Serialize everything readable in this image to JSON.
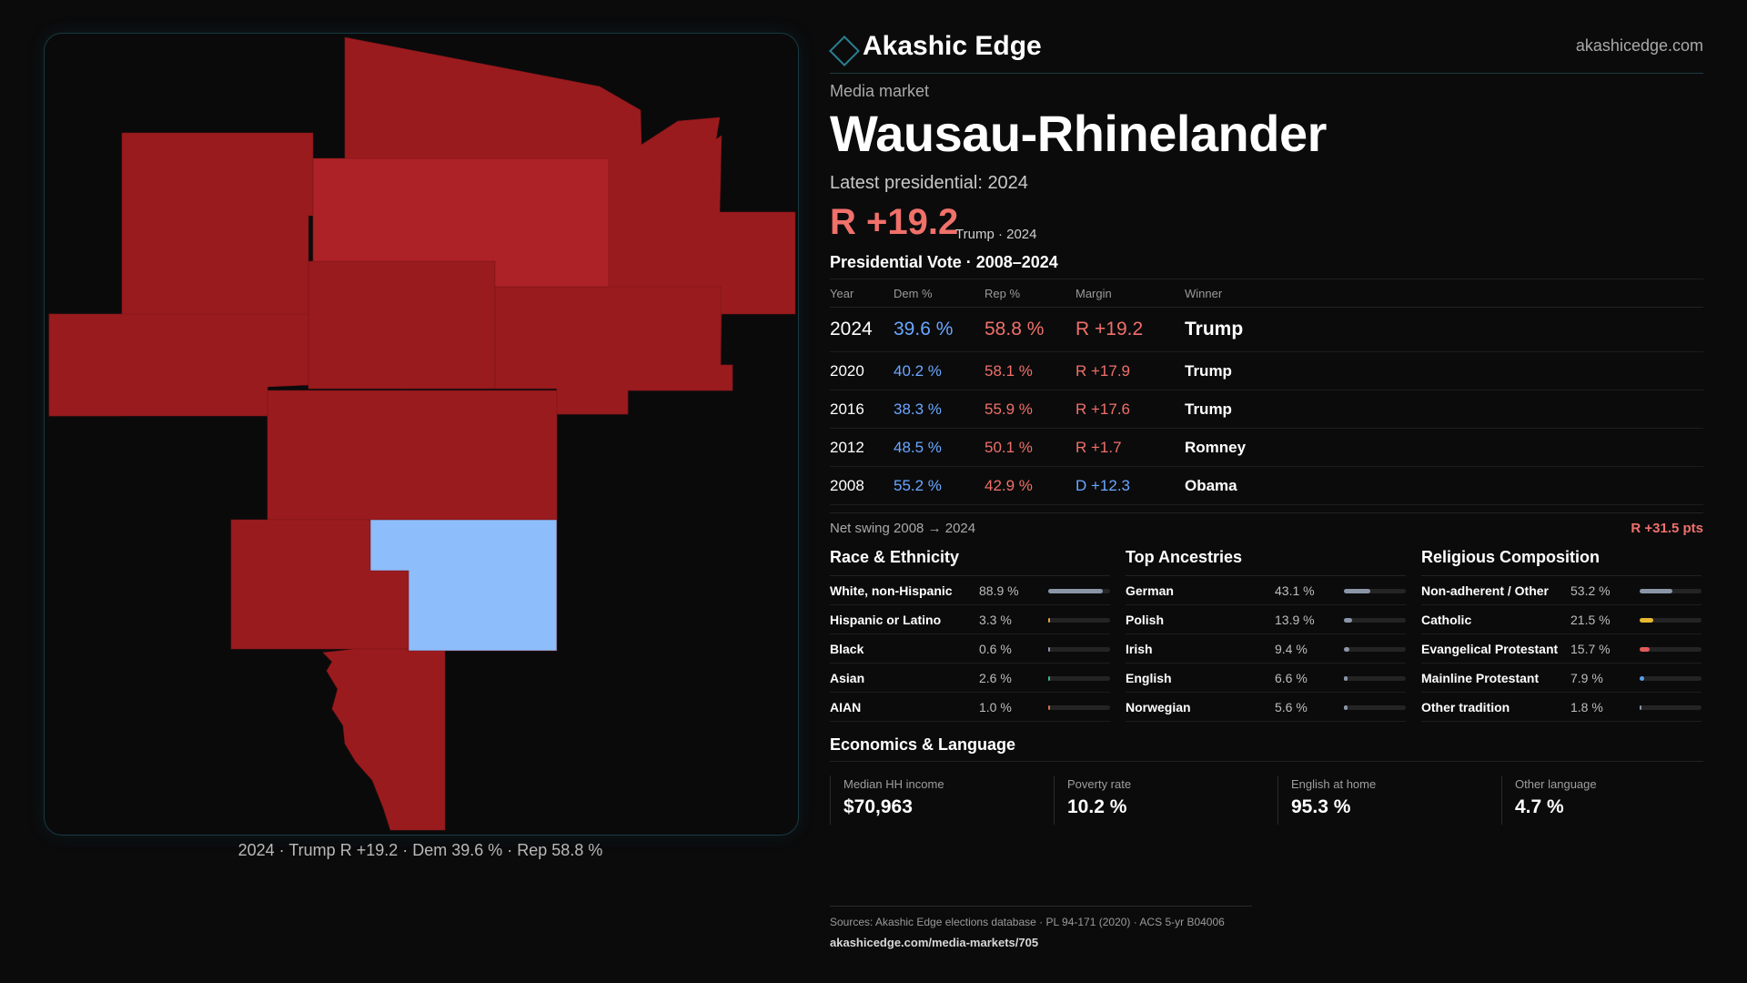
{
  "brand": {
    "name": "Akashic Edge",
    "site": "akashicedge.com",
    "accent": "#2a7f8f"
  },
  "kicker": "Media market",
  "title": "Wausau-Rhinelander",
  "latest": "Latest presidential: 2024",
  "headline_margin": {
    "value": "R +19.2",
    "sub": "Trump · 2024"
  },
  "vote_section_title": "Presidential Vote · 2008–2024",
  "vote_table": {
    "headers": {
      "year": "Year",
      "dem": "Dem %",
      "rep": "Rep %",
      "margin": "Margin",
      "winner": "Winner"
    },
    "rows": [
      {
        "year": "2024",
        "dem": "39.6 %",
        "rep": "58.8 %",
        "margin": "R +19.2",
        "party": "R",
        "winner": "Trump"
      },
      {
        "year": "2020",
        "dem": "40.2 %",
        "rep": "58.1 %",
        "margin": "R +17.9",
        "party": "R",
        "winner": "Trump"
      },
      {
        "year": "2016",
        "dem": "38.3 %",
        "rep": "55.9 %",
        "margin": "R +17.6",
        "party": "R",
        "winner": "Trump"
      },
      {
        "year": "2012",
        "dem": "48.5 %",
        "rep": "50.1 %",
        "margin": "R +1.7",
        "party": "R",
        "winner": "Romney"
      },
      {
        "year": "2008",
        "dem": "55.2 %",
        "rep": "42.9 %",
        "margin": "D +12.3",
        "party": "D",
        "winner": "Obama"
      }
    ]
  },
  "net_swing": {
    "label": "Net swing 2008 → 2024",
    "value": "R +31.5 pts"
  },
  "demographics": [
    {
      "title": "Race & Ethnicity",
      "items": [
        {
          "label": "White, non-Hispanic",
          "pct": "88.9 %",
          "value": 88.9,
          "color": "#8a96a8"
        },
        {
          "label": "Hispanic or Latino",
          "pct": "3.3 %",
          "value": 3.3,
          "color": "#e0a040"
        },
        {
          "label": "Black",
          "pct": "0.6 %",
          "value": 0.6,
          "color": "#8a96a8"
        },
        {
          "label": "Asian",
          "pct": "2.6 %",
          "value": 2.6,
          "color": "#3fb08f"
        },
        {
          "label": "AIAN",
          "pct": "1.0 %",
          "value": 1.0,
          "color": "#d0704a"
        }
      ]
    },
    {
      "title": "Top Ancestries",
      "items": [
        {
          "label": "German",
          "pct": "43.1 %",
          "value": 43.1,
          "color": "#8a96a8"
        },
        {
          "label": "Polish",
          "pct": "13.9 %",
          "value": 13.9,
          "color": "#8a96a8"
        },
        {
          "label": "Irish",
          "pct": "9.4 %",
          "value": 9.4,
          "color": "#8a96a8"
        },
        {
          "label": "English",
          "pct": "6.6 %",
          "value": 6.6,
          "color": "#8a96a8"
        },
        {
          "label": "Norwegian",
          "pct": "5.6 %",
          "value": 5.6,
          "color": "#8a96a8"
        }
      ]
    },
    {
      "title": "Religious Composition",
      "items": [
        {
          "label": "Non-adherent / Other",
          "pct": "53.2 %",
          "value": 53.2,
          "color": "#8a96a8"
        },
        {
          "label": "Catholic",
          "pct": "21.5 %",
          "value": 21.5,
          "color": "#e8b830"
        },
        {
          "label": "Evangelical Protestant",
          "pct": "15.7 %",
          "value": 15.7,
          "color": "#e05a5a"
        },
        {
          "label": "Mainline Protestant",
          "pct": "7.9 %",
          "value": 7.9,
          "color": "#5aa0e8"
        },
        {
          "label": "Other tradition",
          "pct": "1.8 %",
          "value": 1.8,
          "color": "#8a96a8"
        }
      ]
    }
  ],
  "economics": {
    "title": "Economics & Language",
    "items": [
      {
        "label": "Median HH income",
        "value": "$70,963"
      },
      {
        "label": "Poverty rate",
        "value": "10.2 %"
      },
      {
        "label": "English at home",
        "value": "95.3 %"
      },
      {
        "label": "Other language",
        "value": "4.7 %"
      }
    ]
  },
  "footer": {
    "sources": "Sources: Akashic Edge elections database · PL 94-171 (2020) · ACS 5-yr B04006",
    "url": "akashicedge.com/media-markets/705"
  },
  "map": {
    "caption": "2024 · Trump R +19.2 · Dem 39.6 % · Rep 58.8 %",
    "colors": {
      "rep_dark": "#9a1b1e",
      "rep_light": "#ad2226",
      "dem": "#8dbdfa"
    }
  }
}
